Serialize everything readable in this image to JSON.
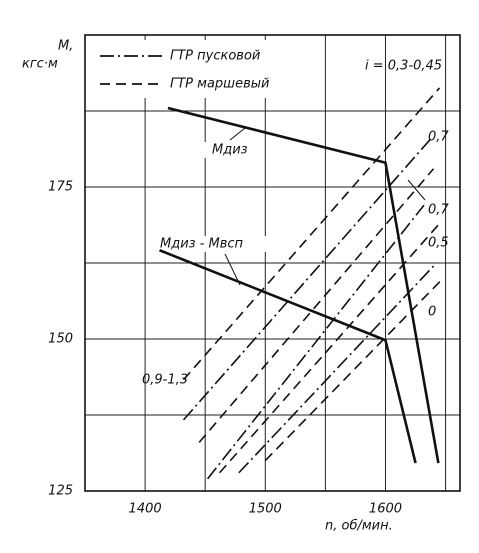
{
  "chart_data": {
    "type": "line",
    "y_label_top": "M,",
    "y_label_bottom": "кгс·м",
    "x_label": "n, об/мин.",
    "xlim": [
      1350,
      1662
    ],
    "ylim": [
      125,
      200
    ],
    "xticks": [
      1400,
      1500,
      1600
    ],
    "yticks": [
      125,
      150,
      175
    ],
    "xgrid": [
      1400,
      1450,
      1500,
      1550,
      1600,
      1650
    ],
    "ygrid": [
      137.5,
      150,
      162.5,
      175,
      187.5
    ],
    "series": [
      {
        "name": "ГТР пусковой",
        "style": "dashdot"
      },
      {
        "name": "ГТР маршевый",
        "style": "dashed"
      }
    ],
    "curves": [
      {
        "name": "Mдиз",
        "x": [
          1419,
          1600,
          1644
        ],
        "y": [
          188,
          179,
          129.6
        ]
      },
      {
        "name": "Mдиз - Mвсп",
        "x": [
          1412,
          1600,
          1625
        ],
        "y": [
          164.6,
          149.8,
          129.6
        ]
      }
    ],
    "gear_lines": [
      {
        "style": "dashed",
        "x": [
          1432,
          1645
        ],
        "y": [
          143.3,
          191.3
        ]
      },
      {
        "style": "dashdot",
        "x": [
          1432,
          1638
        ],
        "y": [
          136.7,
          183
        ]
      },
      {
        "style": "dashed",
        "x": [
          1445,
          1640
        ],
        "y": [
          133,
          178
        ]
      },
      {
        "style": "dashdot",
        "x": [
          1452,
          1632
        ],
        "y": [
          127,
          172
        ]
      },
      {
        "style": "dashed",
        "x": [
          1462,
          1645
        ],
        "y": [
          128,
          169
        ]
      },
      {
        "style": "dashdot",
        "x": [
          1478,
          1640
        ],
        "y": [
          128,
          162
        ]
      },
      {
        "style": "dashed",
        "x": [
          1500,
          1648
        ],
        "y": [
          130,
          160
        ]
      }
    ],
    "annotations": [
      "i = 0,3-0,45",
      "0,7",
      "0,7",
      "0,5",
      "0",
      "0,9-1,3"
    ]
  }
}
